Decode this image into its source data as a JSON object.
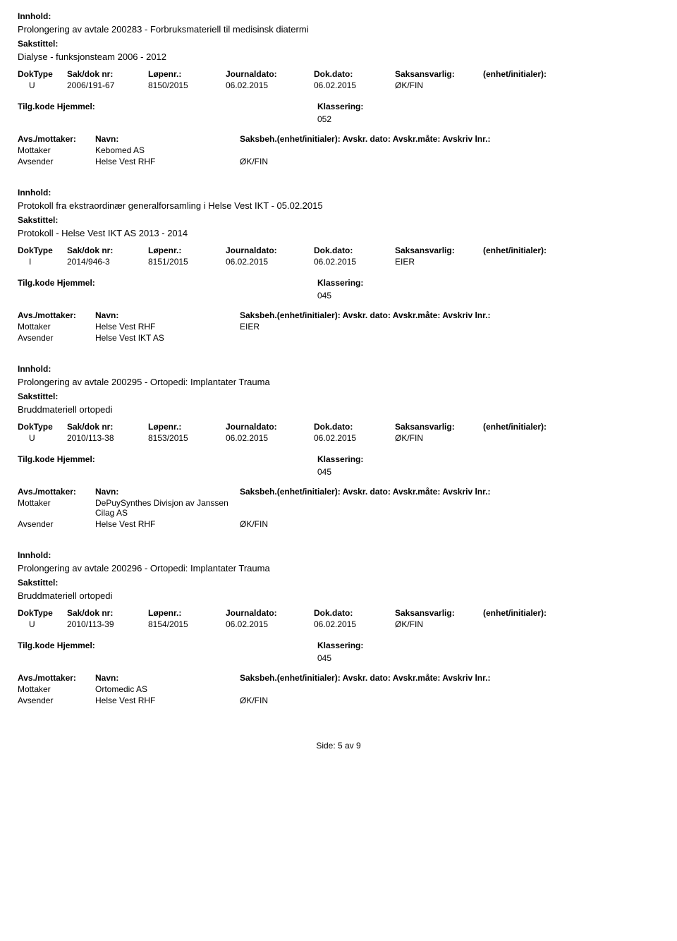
{
  "labels": {
    "innhold": "Innhold:",
    "sakstittel": "Sakstittel:",
    "doktype": "DokType",
    "sakdoknr": "Sak/dok nr:",
    "lopenr": "Løpenr.:",
    "journaldato": "Journaldato:",
    "dokdato": "Dok.dato:",
    "saksansvarlig": "Saksansvarlig:",
    "enhet": "(enhet/initialer):",
    "tilgkode": "Tilg.kode",
    "hjemmel": "Hjemmel:",
    "klassering": "Klassering:",
    "avsmottaker": "Avs./mottaker:",
    "navn": "Navn:",
    "saksbeh": "Saksbeh.(enhet/initialer): Avskr. dato:  Avskr.måte:  Avskriv lnr.:",
    "mottaker": "Mottaker",
    "avsender": "Avsender"
  },
  "records": [
    {
      "innhold": "Prolongering av avtale 200283 - Forbruksmateriell til medisinsk diatermi",
      "sakstittel": "Dialyse - funksjonsteam 2006 - 2012",
      "doktype": "U",
      "sakdoknr": "2006/191-67",
      "lopenr": "8150/2015",
      "journaldato": "06.02.2015",
      "dokdato": "06.02.2015",
      "saksansvarlig": "ØK/FIN",
      "klassering": "052",
      "parties": [
        {
          "role": "Mottaker",
          "name": "Kebomed AS",
          "extra": ""
        },
        {
          "role": "Avsender",
          "name": "Helse Vest RHF",
          "extra": "ØK/FIN"
        }
      ]
    },
    {
      "innhold": "Protokoll fra ekstraordinær generalforsamling i Helse Vest IKT - 05.02.2015",
      "sakstittel": "Protokoll - Helse Vest IKT AS 2013 - 2014",
      "doktype": "I",
      "sakdoknr": "2014/946-3",
      "lopenr": "8151/2015",
      "journaldato": "06.02.2015",
      "dokdato": "06.02.2015",
      "saksansvarlig": "EIER",
      "klassering": "045",
      "parties": [
        {
          "role": "Mottaker",
          "name": "Helse Vest RHF",
          "extra": "EIER"
        },
        {
          "role": "Avsender",
          "name": "Helse Vest IKT AS",
          "extra": ""
        }
      ]
    },
    {
      "innhold": "Prolongering av avtale 200295 - Ortopedi: Implantater Trauma",
      "sakstittel": "Bruddmateriell ortopedi",
      "doktype": "U",
      "sakdoknr": "2010/113-38",
      "lopenr": "8153/2015",
      "journaldato": "06.02.2015",
      "dokdato": "06.02.2015",
      "saksansvarlig": "ØK/FIN",
      "klassering": "045",
      "parties": [
        {
          "role": "Mottaker",
          "name": "DePuySynthes Divisjon av Janssen Cilag AS",
          "extra": ""
        },
        {
          "role": "Avsender",
          "name": "Helse Vest RHF",
          "extra": "ØK/FIN"
        }
      ]
    },
    {
      "innhold": "Prolongering av avtale 200296 - Ortopedi: Implantater Trauma",
      "sakstittel": "Bruddmateriell ortopedi",
      "doktype": "U",
      "sakdoknr": "2010/113-39",
      "lopenr": "8154/2015",
      "journaldato": "06.02.2015",
      "dokdato": "06.02.2015",
      "saksansvarlig": "ØK/FIN",
      "klassering": "045",
      "parties": [
        {
          "role": "Mottaker",
          "name": "Ortomedic AS",
          "extra": ""
        },
        {
          "role": "Avsender",
          "name": "Helse Vest RHF",
          "extra": "ØK/FIN"
        }
      ]
    }
  ],
  "footer": "Side: 5 av 9"
}
